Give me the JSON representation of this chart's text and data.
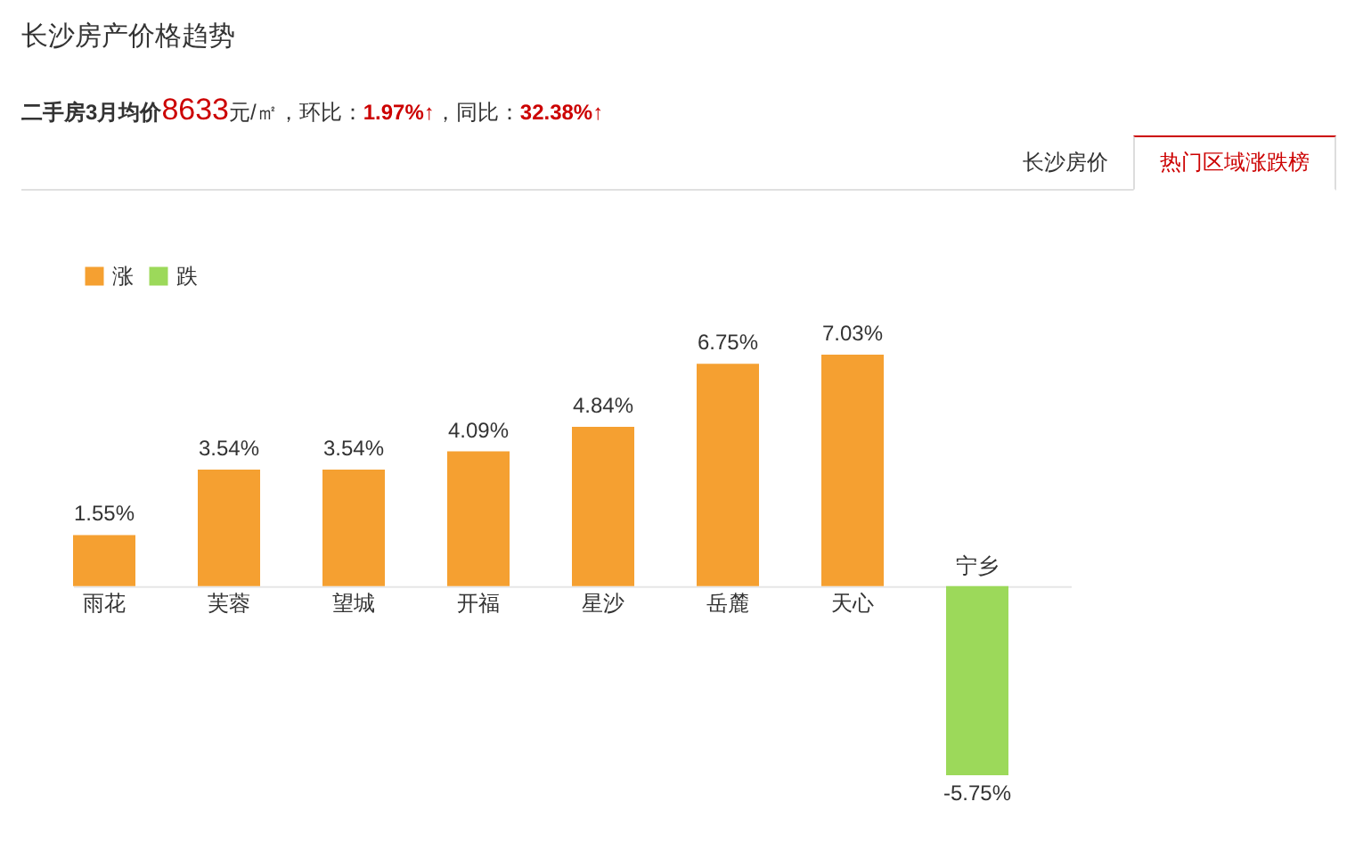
{
  "chart_data": {
    "type": "bar",
    "title": "长沙房产价格趋势",
    "subtitle": "二手房3月均价8633元/㎡，环比：1.97%↑，同比：32.38%↑",
    "annotations": [
      "长沙房价",
      "热门区域涨跌榜"
    ],
    "categories": [
      "雨花",
      "芙蓉",
      "望城",
      "开福",
      "星沙",
      "岳麓",
      "天心",
      "宁乡"
    ],
    "series": [
      {
        "name": "涨",
        "color": "#f5a031",
        "values": [
          1.55,
          3.54,
          3.54,
          4.09,
          4.84,
          6.75,
          7.03,
          null
        ],
        "value_labels": [
          "1.55%",
          "3.54%",
          "3.54%",
          "4.09%",
          "4.84%",
          "6.75%",
          "7.03%",
          null
        ]
      },
      {
        "name": "跌",
        "color": "#9cd95a",
        "values": [
          null,
          null,
          null,
          null,
          null,
          null,
          null,
          -5.75
        ],
        "value_labels": [
          null,
          null,
          null,
          null,
          null,
          null,
          null,
          "-5.75%"
        ]
      }
    ],
    "stacked": true,
    "legend": "top left",
    "tick_labels": "x"
  }
}
